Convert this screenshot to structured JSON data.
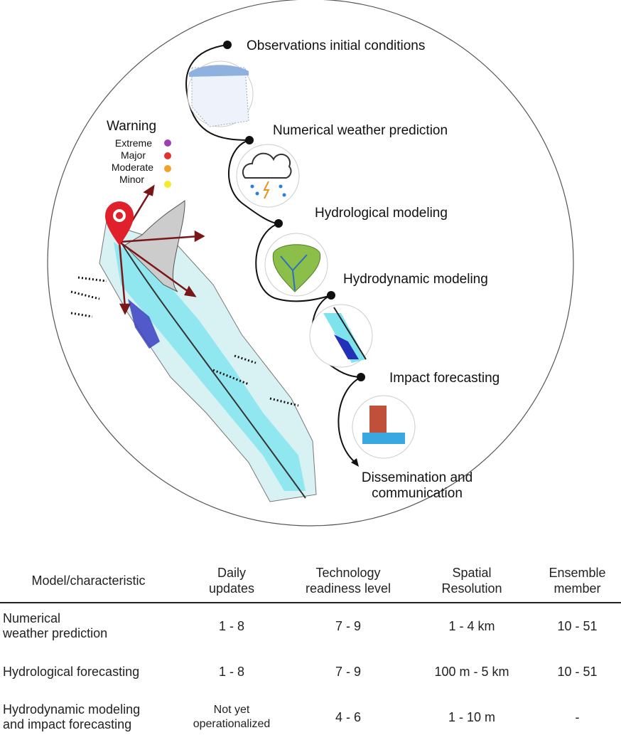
{
  "workflow": {
    "steps": [
      {
        "label": "Observations initial conditions",
        "icon": "germany-station-map-icon"
      },
      {
        "label": "Numerical weather prediction",
        "icon": "storm-cloud-icon"
      },
      {
        "label": "Hydrological modeling",
        "icon": "catchment-river-icon"
      },
      {
        "label": "Hydrodynamic modeling",
        "icon": "flood-map-icon"
      },
      {
        "label": "Impact forecasting",
        "icon": "flooded-building-icon"
      }
    ],
    "final_step": {
      "line1": "Dissemination and",
      "line2": "communication"
    }
  },
  "warning": {
    "title": "Warning",
    "levels": [
      {
        "label": "Extreme",
        "color": "#9b3fb5"
      },
      {
        "label": "Major",
        "color": "#e0322f"
      },
      {
        "label": "Moderate",
        "color": "#f2a22a"
      },
      {
        "label": "Minor",
        "color": "#f4ec2a"
      }
    ]
  },
  "colors": {
    "pin": "#e0202a",
    "arrow": "#7a1518",
    "flood_light": "#7fe3ee",
    "flood_deep": "#3a3fc0"
  },
  "table": {
    "headers": [
      {
        "line1": "Model/characteristic",
        "line2": ""
      },
      {
        "line1": "Daily",
        "line2": "updates"
      },
      {
        "line1": "Technology",
        "line2": "readiness level"
      },
      {
        "line1": "Spatial",
        "line2": "Resolution"
      },
      {
        "line1": "Ensemble",
        "line2": "member"
      }
    ],
    "rows": [
      {
        "model_line1": "Numerical",
        "model_line2": "weather prediction",
        "daily_line1": "1 - 8",
        "daily_line2": "",
        "trl": "7 - 9",
        "resolution": "1 - 4 km",
        "ensemble": "10 - 51"
      },
      {
        "model_line1": "Hydrological forecasting",
        "model_line2": "",
        "daily_line1": "1 - 8",
        "daily_line2": "",
        "trl": "7 - 9",
        "resolution": "100 m - 5 km",
        "ensemble": "10 - 51"
      },
      {
        "model_line1": "Hydrodynamic modeling",
        "model_line2": "and impact forecasting",
        "daily_line1": "Not yet",
        "daily_line2": "operationalized",
        "trl": "4 - 6",
        "resolution": "1 - 10 m",
        "ensemble": "-"
      }
    ]
  }
}
